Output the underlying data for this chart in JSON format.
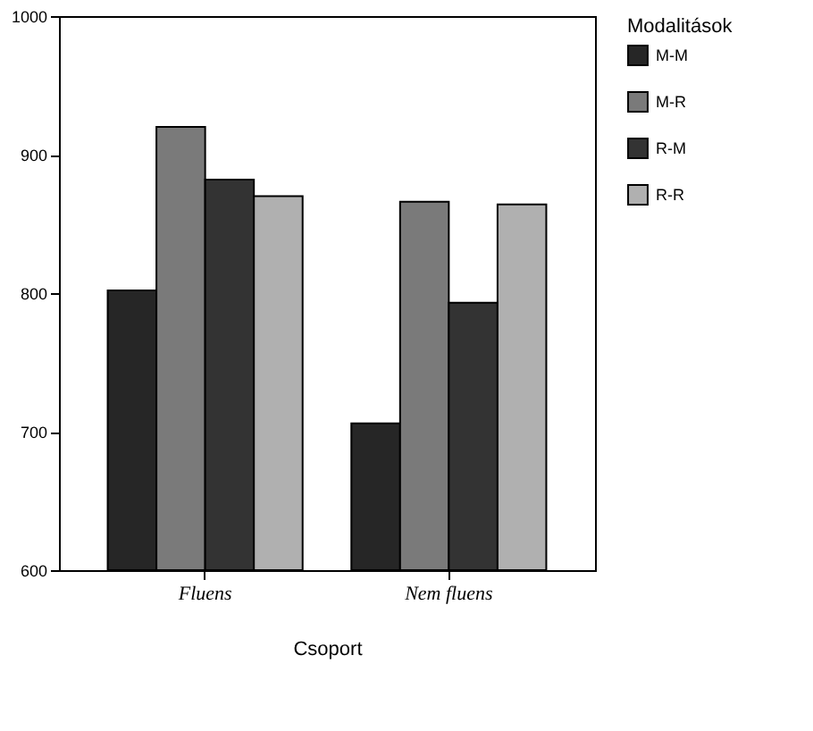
{
  "chart_data": {
    "type": "bar",
    "xlabel": "Csoport",
    "legend_title": "Modalitások",
    "legend": "right",
    "grid": false,
    "categories": [
      "Fluens",
      "Nem fluens"
    ],
    "series": [
      {
        "name": "M-M",
        "color": "#262626",
        "values": [
          802,
          706
        ]
      },
      {
        "name": "M-R",
        "color": "#7a7a7a",
        "values": [
          920,
          866
        ]
      },
      {
        "name": "R-M",
        "color": "#333333",
        "values": [
          882,
          793
        ]
      },
      {
        "name": "R-R",
        "color": "#b0b0b0",
        "values": [
          870,
          864
        ]
      }
    ],
    "ylim": [
      600,
      1000
    ],
    "yticks": [
      600,
      700,
      800,
      900,
      1000
    ]
  }
}
